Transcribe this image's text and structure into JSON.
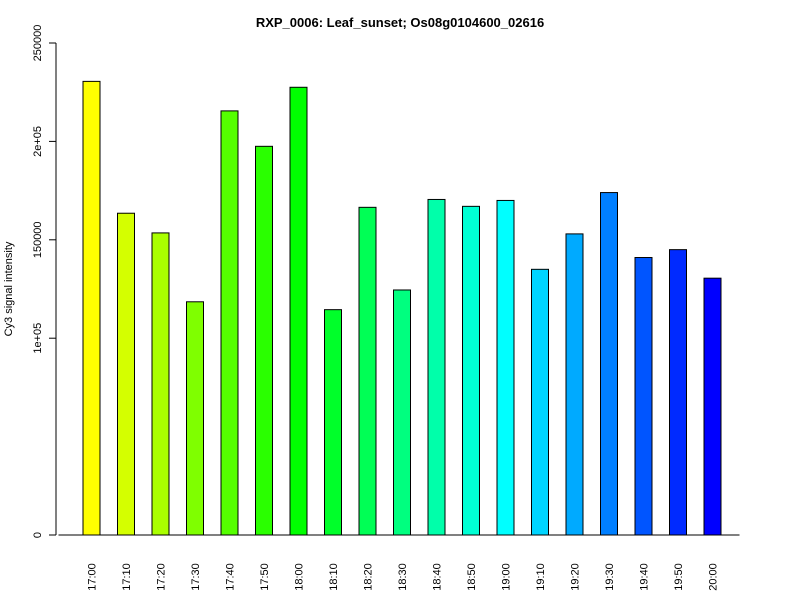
{
  "chart_data": {
    "type": "bar",
    "title": "RXP_0006: Leaf_sunset; Os08g0104600_02616",
    "xlabel": "",
    "ylabel": "Cy3 signal intensity",
    "ylim": [
      0,
      250000
    ],
    "yticks": [
      0,
      100000,
      150000,
      200000,
      250000
    ],
    "ytick_labels": [
      "0",
      "1e+05",
      "150000",
      "2e+05",
      "250000"
    ],
    "categories": [
      "17:00",
      "17:10",
      "17:20",
      "17:30",
      "17:40",
      "17:50",
      "18:00",
      "18:10",
      "18:20",
      "18:30",
      "18:40",
      "18:50",
      "19:00",
      "19:10",
      "19:20",
      "19:30",
      "19:40",
      "19:50",
      "20:00"
    ],
    "values": [
      230500,
      163500,
      153500,
      118500,
      215500,
      197500,
      227500,
      114500,
      166500,
      124500,
      170500,
      167000,
      170000,
      135000,
      153000,
      174000,
      141000,
      145000,
      130500
    ],
    "colors": [
      "#FFFF00",
      "#D4FF00",
      "#AAFF00",
      "#7FFF00",
      "#55FF00",
      "#2AFF00",
      "#00FF00",
      "#00FF2A",
      "#00FF55",
      "#00FF7F",
      "#00FFAA",
      "#00FFD4",
      "#00FFFF",
      "#00D4FF",
      "#00AAFF",
      "#007FFF",
      "#0055FF",
      "#002AFF",
      "#0000FF"
    ],
    "grid": false,
    "legend": "none"
  }
}
